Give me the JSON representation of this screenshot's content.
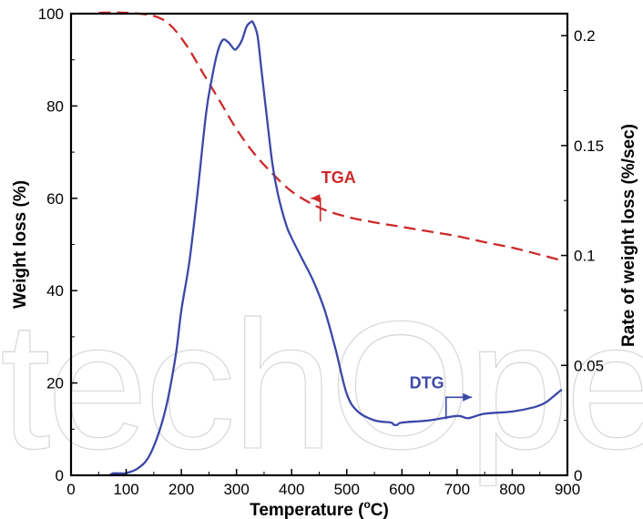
{
  "watermark": "techOpen",
  "chart_data": {
    "type": "line",
    "xlabel": "Temperature (°C)",
    "xlabel_base": "Temperature (",
    "xlabel_deg": "o",
    "xlabel_unit": "C)",
    "ylabel": "Weight loss (%)",
    "y2label": "Rate of weight loss (%/sec)",
    "xlim": [
      0,
      900
    ],
    "ylim": [
      0,
      100
    ],
    "y2lim": [
      0,
      0.21
    ],
    "grid": false,
    "x_ticks": [
      "0",
      "100",
      "200",
      "300",
      "400",
      "500",
      "600",
      "700",
      "800",
      "900"
    ],
    "y_ticks": [
      "0",
      "20",
      "40",
      "60",
      "80",
      "100"
    ],
    "y2_ticks": [
      "0",
      "0.05",
      "0.1",
      "0.15",
      "0.2"
    ],
    "series": [
      {
        "name": "TGA",
        "axis": "left",
        "style": "dashed",
        "color": "#cc2a2a",
        "x": [
          50,
          100,
          150,
          180,
          210,
          240,
          270,
          300,
          330,
          360,
          400,
          450,
          500,
          550,
          600,
          650,
          700,
          750,
          800,
          850,
          890
        ],
        "y": [
          100.2,
          100.2,
          99.5,
          97.5,
          93,
          87,
          81,
          75,
          70,
          66,
          61.5,
          58,
          56,
          54.8,
          53.8,
          52.8,
          51.8,
          50.5,
          49.3,
          47.8,
          46.5
        ]
      },
      {
        "name": "DTG",
        "axis": "right",
        "style": "solid",
        "color": "#3c48a8",
        "x": [
          70,
          75,
          80,
          90,
          100,
          120,
          140,
          160,
          175,
          190,
          200,
          215,
          230,
          245,
          255,
          265,
          275,
          285,
          295,
          300,
          310,
          318,
          325,
          330,
          338,
          345,
          355,
          365,
          375,
          390,
          400,
          420,
          440,
          460,
          480,
          500,
          520,
          550,
          580,
          585,
          592,
          600,
          650,
          700,
          720,
          750,
          800,
          840,
          860,
          880,
          890
        ],
        "y": [
          0,
          0.0008,
          0.0009,
          0.0009,
          0.001,
          0.003,
          0.008,
          0.02,
          0.034,
          0.055,
          0.075,
          0.098,
          0.13,
          0.165,
          0.18,
          0.192,
          0.198,
          0.197,
          0.194,
          0.194,
          0.198,
          0.204,
          0.206,
          0.206,
          0.2,
          0.185,
          0.163,
          0.142,
          0.128,
          0.114,
          0.108,
          0.098,
          0.088,
          0.075,
          0.057,
          0.037,
          0.029,
          0.025,
          0.024,
          0.023,
          0.023,
          0.024,
          0.025,
          0.027,
          0.026,
          0.028,
          0.029,
          0.031,
          0.033,
          0.037,
          0.039
        ]
      }
    ],
    "annotations": [
      {
        "text": "TGA",
        "color": "#cc2a2a",
        "label_x": 490,
        "label_y": 64.5,
        "arrow": [
          [
            452,
            55
          ],
          [
            452,
            60
          ],
          [
            435,
            60
          ]
        ]
      },
      {
        "text": "DTG",
        "color": "#3c48a8",
        "label_x": 650,
        "label_y": 0.042,
        "arrow": [
          [
            680,
            0.0255
          ],
          [
            680,
            0.0355
          ],
          [
            727,
            0.0355
          ]
        ]
      }
    ]
  }
}
